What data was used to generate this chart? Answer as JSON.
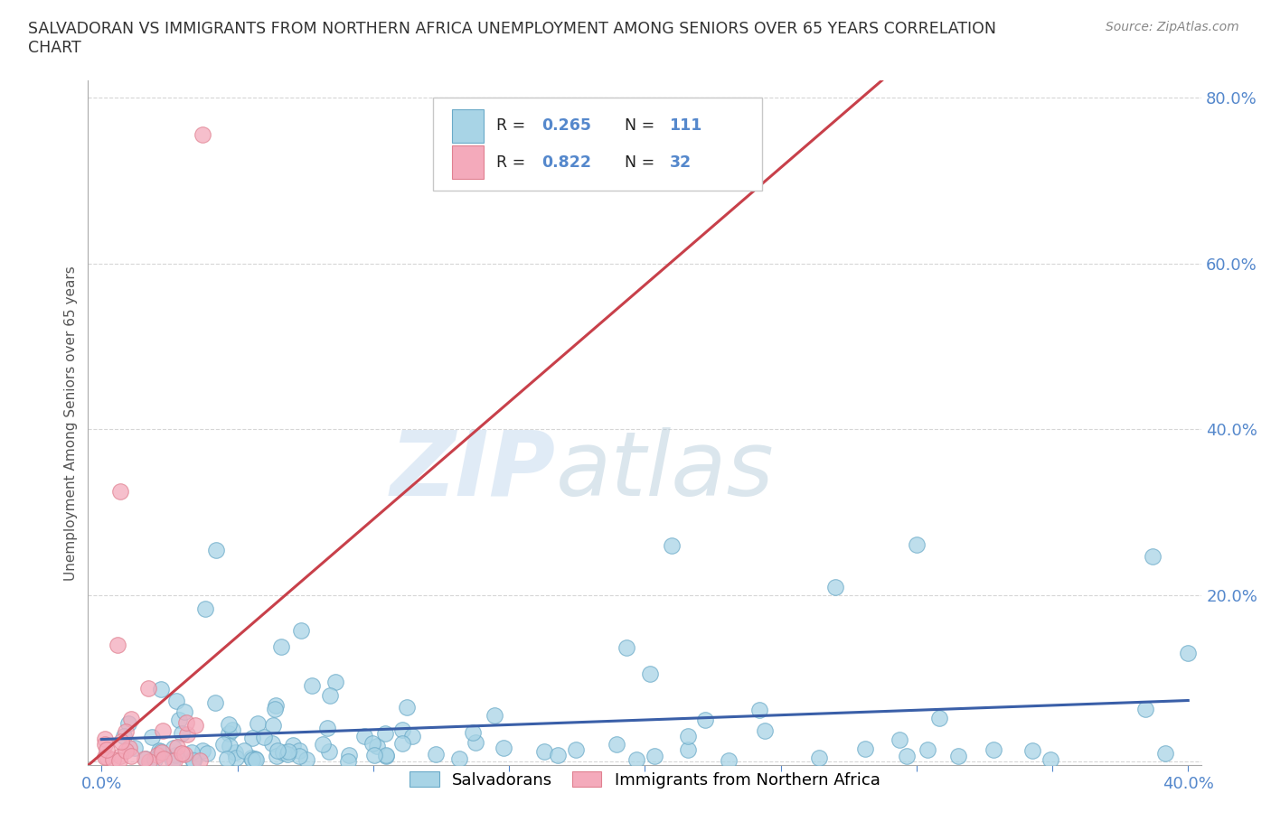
{
  "title": "SALVADORAN VS IMMIGRANTS FROM NORTHERN AFRICA UNEMPLOYMENT AMONG SENIORS OVER 65 YEARS CORRELATION\nCHART",
  "source": "Source: ZipAtlas.com",
  "ylabel": "Unemployment Among Seniors over 65 years",
  "xlim": [
    0.0,
    0.4
  ],
  "ylim": [
    0.0,
    0.8
  ],
  "xtick_positions": [
    0.0,
    0.05,
    0.1,
    0.15,
    0.2,
    0.25,
    0.3,
    0.35,
    0.4
  ],
  "xtick_labels": [
    "0.0%",
    "",
    "",
    "",
    "",
    "",
    "",
    "",
    "40.0%"
  ],
  "ytick_positions": [
    0.0,
    0.2,
    0.4,
    0.6,
    0.8
  ],
  "ytick_labels": [
    "",
    "20.0%",
    "40.0%",
    "60.0%",
    "80.0%"
  ],
  "salvadoran_R": 0.265,
  "salvadoran_N": 111,
  "northern_africa_R": 0.822,
  "northern_africa_N": 32,
  "salvadoran_color": "#A8D4E6",
  "northern_africa_color": "#F4AABB",
  "salvadoran_edge_color": "#6AAAC8",
  "northern_africa_edge_color": "#E08090",
  "salvadoran_line_color": "#3A5FA8",
  "northern_africa_line_color": "#C8404A",
  "watermark_zip": "ZIP",
  "watermark_atlas": "atlas",
  "background_color": "#FFFFFF",
  "grid_color": "#CCCCCC",
  "tick_color": "#5588CC",
  "title_color": "#333333",
  "source_color": "#888888",
  "ylabel_color": "#555555"
}
